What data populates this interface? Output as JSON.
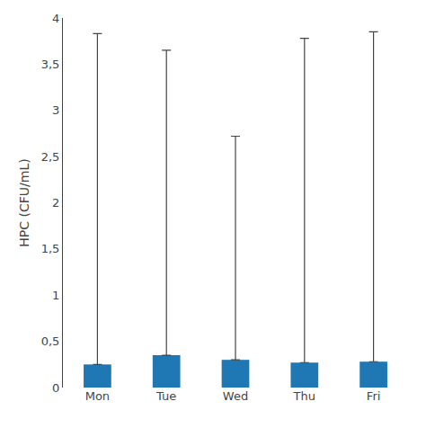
{
  "chart_data": {
    "type": "bar",
    "categories": [
      "Mon",
      "Tue",
      "Wed",
      "Thu",
      "Fri"
    ],
    "values": [
      0.25,
      0.35,
      0.3,
      0.27,
      0.28
    ],
    "error_high": [
      3.83,
      3.65,
      2.72,
      3.78,
      3.85
    ],
    "ylabel": "HPC (CFU/mL)",
    "ylim": [
      0,
      4.0
    ],
    "yticks": [
      0,
      {
        "value": 0.5,
        "label": "0,5"
      },
      1,
      {
        "value": 1.5,
        "label": "1,5"
      },
      2,
      {
        "value": 2.5,
        "label": "2,5"
      },
      3,
      {
        "value": 3.5,
        "label": "3,5"
      },
      4
    ],
    "grid": false
  }
}
